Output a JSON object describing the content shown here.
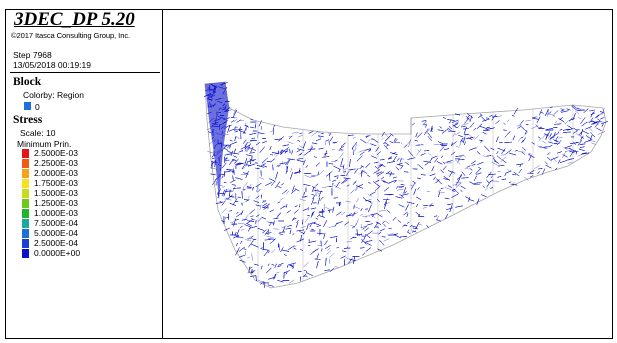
{
  "header": {
    "title": "3DEC_DP 5.20",
    "copyright": "©2017 Itasca Consulting Group, Inc.",
    "step": "Step 7968",
    "datetime": "13/05/2018 00:19:19"
  },
  "block": {
    "title": "Block",
    "colorby": "Colorby: Region",
    "region_value": "0",
    "region_color": "#1e6fdc"
  },
  "stress": {
    "title": "Stress",
    "scale": "Scale: 10",
    "quantity": "Minimum Prin.",
    "levels": [
      {
        "label": "2.5000E-03",
        "color": "#e8141c"
      },
      {
        "label": "2.2500E-03",
        "color": "#f25a14"
      },
      {
        "label": "2.0000E-03",
        "color": "#f7a21b"
      },
      {
        "label": "1.7500E-03",
        "color": "#f7e01f"
      },
      {
        "label": "1.5000E-03",
        "color": "#c7dc1a"
      },
      {
        "label": "1.2500E-03",
        "color": "#6fc91b"
      },
      {
        "label": "1.0000E-03",
        "color": "#20b52a"
      },
      {
        "label": "7.5000E-04",
        "color": "#1aa99d"
      },
      {
        "label": "5.0000E-04",
        "color": "#1b6fd6"
      },
      {
        "label": "2.5000E-04",
        "color": "#1a3fd6"
      },
      {
        "label": "0.0000E+00",
        "color": "#0a10c8"
      }
    ]
  },
  "plot": {
    "stress_color": "#0b12c9",
    "outline_color": "#000000"
  }
}
